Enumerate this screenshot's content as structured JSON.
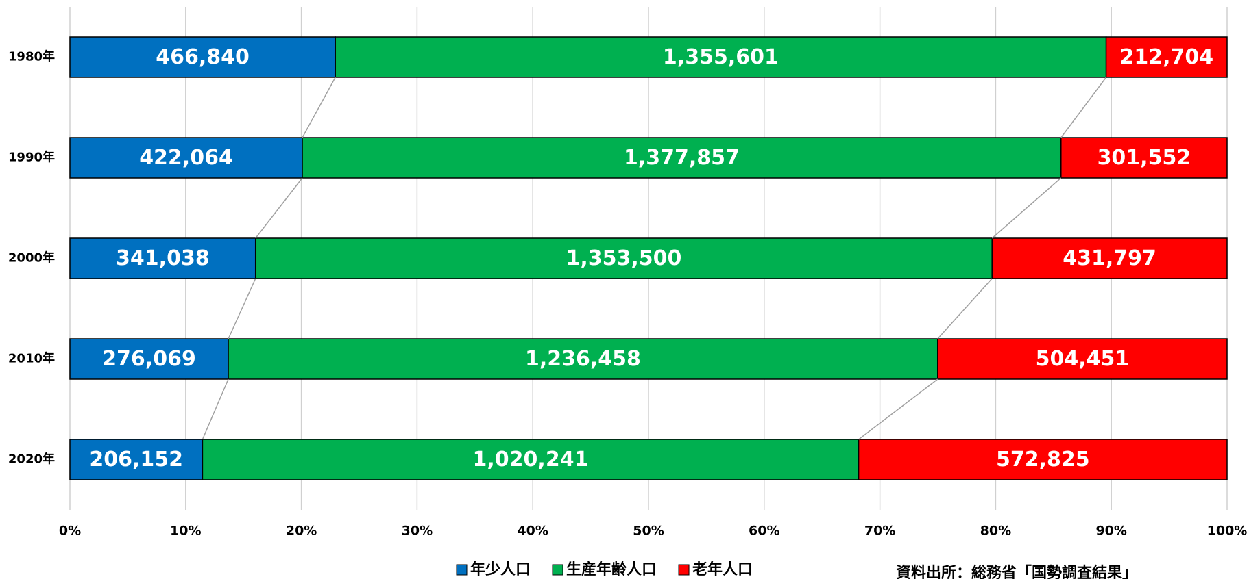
{
  "chart_data": {
    "type": "bar",
    "orientation": "horizontal",
    "stacking": "percent",
    "categories": [
      "1980年",
      "1990年",
      "2000年",
      "2010年",
      "2020年"
    ],
    "series": [
      {
        "name": "年少人口",
        "color": "#0070c0",
        "values": [
          466840,
          422064,
          341038,
          276069,
          206152
        ],
        "value_labels": [
          "466,840",
          "422,064",
          "341,038",
          "276,069",
          "206,152"
        ]
      },
      {
        "name": "生産年齢人口",
        "color": "#00b050",
        "values": [
          1355601,
          1377857,
          1353500,
          1236458,
          1020241
        ],
        "value_labels": [
          "1,355,601",
          "1,377,857",
          "1,353,500",
          "1,236,458",
          "1,020,241"
        ]
      },
      {
        "name": "老年人口",
        "color": "#ff0000",
        "values": [
          212704,
          301552,
          431797,
          504451,
          572825
        ],
        "value_labels": [
          "212,704",
          "301,552",
          "431,797",
          "504,451",
          "572,825"
        ]
      }
    ],
    "xlim": [
      0,
      100
    ],
    "xticks": [
      {
        "value": 0,
        "label": "0%"
      },
      {
        "value": 10,
        "label": "10%"
      },
      {
        "value": 20,
        "label": "20%"
      },
      {
        "value": 30,
        "label": "30%"
      },
      {
        "value": 40,
        "label": "40%"
      },
      {
        "value": 50,
        "label": "50%"
      },
      {
        "value": 60,
        "label": "60%"
      },
      {
        "value": 70,
        "label": "70%"
      },
      {
        "value": 80,
        "label": "80%"
      },
      {
        "value": 90,
        "label": "90%"
      },
      {
        "value": 100,
        "label": "100%"
      }
    ],
    "grid": true,
    "legend": "bottom",
    "source": "資料出所：総務省「国勢調査結果」"
  }
}
